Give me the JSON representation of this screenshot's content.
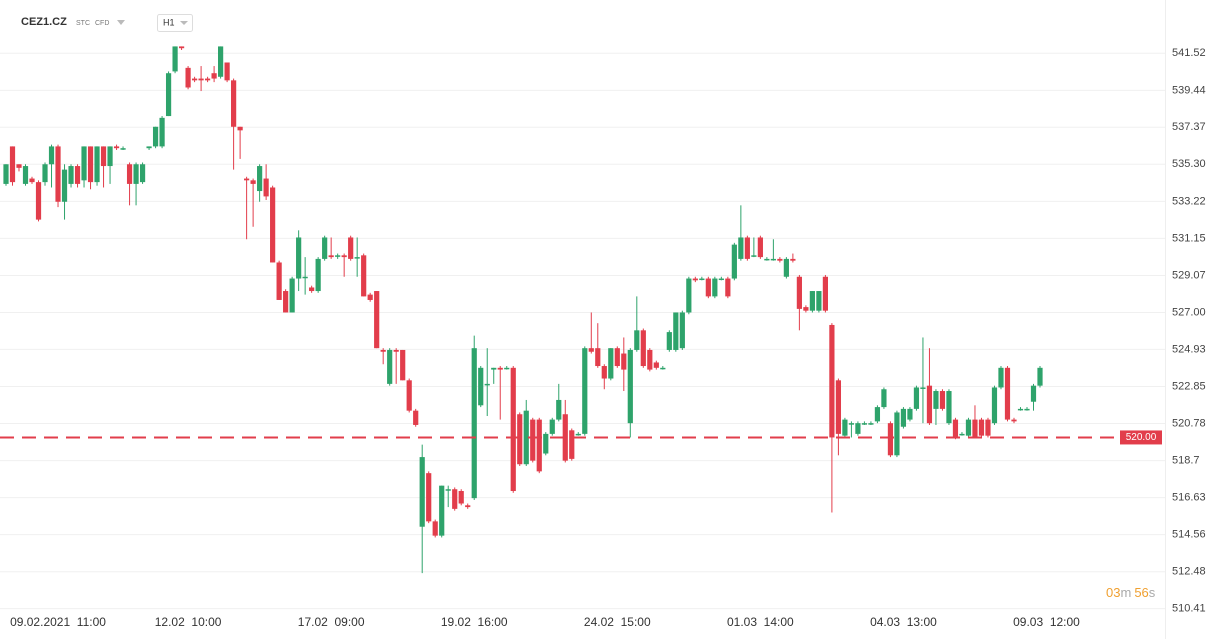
{
  "chart_data": {
    "type": "candlestick",
    "title": "CEZ1.CZ",
    "badges": [
      "STC",
      "CFD"
    ],
    "timeframe": "H1",
    "up_color": "#2ea36b",
    "down_color": "#e23d4b",
    "ylim": [
      510.0,
      544.5
    ],
    "yticks": [
      541.52,
      539.44,
      537.37,
      {
        "value": 535.3,
        "label": "535.30"
      },
      533.22,
      531.15,
      529.07,
      {
        "value": 527.0,
        "label": "527.00"
      },
      524.93,
      522.85,
      520.78,
      518.7,
      516.63,
      514.56,
      512.48,
      510.41
    ],
    "price_line": {
      "value": 520,
      "label": "520.00"
    },
    "countdown": [
      "03",
      "m",
      "56",
      "s"
    ],
    "categories": [
      null,
      null,
      null,
      null,
      null,
      null,
      null,
      null,
      "09.02.2021  11:00",
      null,
      null,
      null,
      null,
      null,
      null,
      null,
      null,
      null,
      null,
      null,
      null,
      null,
      null,
      null,
      null,
      null,
      null,
      null,
      "12.02  10:00",
      null,
      null,
      null,
      null,
      null,
      null,
      null,
      null,
      null,
      null,
      null,
      null,
      null,
      null,
      null,
      null,
      null,
      null,
      null,
      null,
      null,
      "17.02  09:00",
      null,
      null,
      null,
      null,
      null,
      null,
      null,
      null,
      null,
      null,
      null,
      null,
      null,
      null,
      null,
      null,
      null,
      null,
      null,
      null,
      null,
      "19.02  16:00",
      null,
      null,
      null,
      null,
      null,
      null,
      null,
      null,
      null,
      null,
      null,
      null,
      null,
      null,
      null,
      null,
      null,
      null,
      null,
      null,
      null,
      "24.02  15:00",
      null,
      null,
      null,
      null,
      null,
      null,
      null,
      null,
      null,
      null,
      null,
      null,
      null,
      null,
      null,
      null,
      null,
      null,
      null,
      null,
      null,
      "01.03  14:00",
      null,
      null,
      null,
      null,
      null,
      null,
      null,
      null,
      null,
      null,
      null,
      null,
      null,
      null,
      null,
      null,
      null,
      null,
      null,
      null,
      null,
      "04.03  13:00",
      null,
      null,
      null,
      null,
      null,
      null,
      null,
      null,
      null,
      null,
      null,
      null,
      null,
      null,
      null,
      null,
      null,
      null,
      null,
      null,
      null,
      "09.03  12:00"
    ],
    "values": [
      [
        534.2,
        535.3,
        534.1,
        535.3
      ],
      [
        536.3,
        536.3,
        534.1,
        534.3
      ],
      [
        535.3,
        535.3,
        534.9,
        535.1
      ],
      [
        534.2,
        535.3,
        534.1,
        535.2
      ],
      [
        534.5,
        534.6,
        534.2,
        534.3
      ],
      [
        534.3,
        534.4,
        532.1,
        532.2
      ],
      [
        534.3,
        535.4,
        534.1,
        535.3
      ],
      [
        535.3,
        536.4,
        534.0,
        536.3
      ],
      [
        536.3,
        536.4,
        532.9,
        533.2
      ],
      [
        533.2,
        535.3,
        532.2,
        535.0
      ],
      [
        534.2,
        535.3,
        534.0,
        535.2
      ],
      [
        535.2,
        535.3,
        534.0,
        534.2
      ],
      [
        534.4,
        536.3,
        534.0,
        536.3
      ],
      [
        536.3,
        536.3,
        533.9,
        534.3
      ],
      [
        534.3,
        536.3,
        534.1,
        536.3
      ],
      [
        536.3,
        536.3,
        534.0,
        535.2
      ],
      [
        535.2,
        536.3,
        534.2,
        536.3
      ],
      [
        536.3,
        536.4,
        536.1,
        536.2
      ],
      [
        536.2,
        536.3,
        536.1,
        536.2
      ],
      [
        535.3,
        535.4,
        533.0,
        534.2
      ],
      [
        534.2,
        535.4,
        533.0,
        535.3
      ],
      [
        534.3,
        535.4,
        534.2,
        535.3
      ],
      [
        536.2,
        536.3,
        536.1,
        536.3
      ],
      [
        536.3,
        537.4,
        536.2,
        537.4
      ],
      [
        536.3,
        538.0,
        536.2,
        537.9
      ],
      [
        538.0,
        540.5,
        538.0,
        540.4
      ],
      [
        540.5,
        541.9,
        540.4,
        541.9
      ],
      [
        541.9,
        541.9,
        541.7,
        541.8
      ],
      [
        540.7,
        540.8,
        539.5,
        539.6
      ],
      [
        540.1,
        540.2,
        539.9,
        540.0
      ],
      [
        540.1,
        540.8,
        539.4,
        540.0
      ],
      [
        540.1,
        540.2,
        539.9,
        540.0
      ],
      [
        540.4,
        540.8,
        539.9,
        540.1
      ],
      [
        540.2,
        541.9,
        540.1,
        541.9
      ],
      [
        541.0,
        541.0,
        539.9,
        540.0
      ],
      [
        540.0,
        540.1,
        535.0,
        537.4
      ],
      [
        537.4,
        537.4,
        535.6,
        537.2
      ],
      [
        534.5,
        534.6,
        531.1,
        534.4
      ],
      [
        534.4,
        534.5,
        531.8,
        534.2
      ],
      [
        533.8,
        535.3,
        533.2,
        535.2
      ],
      [
        534.5,
        535.3,
        533.3,
        533.5
      ],
      [
        534.0,
        534.1,
        529.8,
        529.8
      ],
      [
        529.8,
        529.9,
        527.7,
        527.7
      ],
      [
        528.2,
        528.3,
        527.0,
        527.0
      ],
      [
        527.0,
        529.0,
        527.0,
        528.9
      ],
      [
        528.9,
        531.6,
        528.2,
        531.2
      ],
      [
        529.0,
        530.1,
        528.0,
        529.0
      ],
      [
        528.4,
        528.5,
        528.1,
        528.2
      ],
      [
        528.2,
        530.1,
        528.1,
        530.0
      ],
      [
        530.0,
        531.3,
        529.9,
        531.2
      ],
      [
        530.2,
        531.2,
        530.0,
        530.1
      ],
      [
        530.2,
        530.3,
        530.0,
        530.2
      ],
      [
        530.2,
        530.3,
        529.0,
        530.1
      ],
      [
        531.2,
        531.3,
        529.9,
        530.0
      ],
      [
        530.1,
        531.2,
        529.0,
        530.1
      ],
      [
        530.2,
        530.3,
        527.9,
        527.9
      ],
      [
        528.0,
        528.1,
        527.6,
        527.7
      ],
      [
        528.2,
        528.2,
        525.0,
        525.0
      ],
      [
        524.9,
        525.0,
        524.1,
        524.8
      ],
      [
        523.0,
        525.0,
        522.9,
        524.9
      ],
      [
        524.9,
        525.0,
        523.0,
        524.8
      ],
      [
        524.9,
        524.9,
        523.2,
        523.2
      ],
      [
        523.2,
        523.3,
        521.4,
        521.5
      ],
      [
        521.5,
        521.6,
        520.6,
        520.7
      ],
      [
        515.0,
        519.6,
        512.4,
        518.9
      ],
      [
        518.0,
        518.1,
        515.2,
        515.3
      ],
      [
        515.3,
        515.4,
        514.4,
        514.5
      ],
      [
        514.5,
        517.3,
        514.4,
        517.3
      ],
      [
        517.1,
        517.3,
        516.1,
        517.1
      ],
      [
        517.1,
        517.2,
        515.9,
        516.0
      ],
      [
        517.0,
        517.1,
        516.2,
        516.3
      ],
      [
        516.2,
        516.3,
        516.0,
        516.1
      ],
      [
        516.6,
        525.7,
        516.5,
        525.0
      ],
      [
        521.8,
        524.0,
        521.7,
        523.9
      ],
      [
        523.0,
        525.0,
        521.2,
        523.0
      ],
      [
        523.8,
        523.9,
        523.0,
        523.9
      ],
      [
        523.9,
        524.0,
        521.0,
        523.8
      ],
      [
        523.9,
        524.0,
        523.8,
        523.9
      ],
      [
        523.9,
        524.0,
        516.9,
        517.0
      ],
      [
        521.3,
        521.4,
        518.4,
        518.5
      ],
      [
        518.5,
        522.1,
        518.4,
        521.5
      ],
      [
        521.0,
        521.1,
        518.6,
        518.7
      ],
      [
        521.0,
        521.1,
        518.0,
        518.1
      ],
      [
        519.1,
        520.3,
        519.0,
        520.2
      ],
      [
        520.2,
        521.1,
        520.1,
        521.0
      ],
      [
        521.0,
        523.0,
        520.9,
        522.1
      ],
      [
        521.3,
        522.1,
        518.6,
        518.7
      ],
      [
        520.4,
        520.5,
        518.7,
        518.8
      ],
      [
        520.2,
        520.3,
        520.1,
        520.2
      ],
      [
        520.2,
        525.1,
        520.1,
        525.0
      ],
      [
        525.0,
        527.0,
        524.7,
        524.8
      ],
      [
        525.0,
        526.4,
        523.9,
        524.0
      ],
      [
        524.0,
        524.1,
        522.7,
        523.3
      ],
      [
        523.3,
        525.0,
        523.2,
        525.0
      ],
      [
        525.0,
        525.1,
        523.9,
        524.0
      ],
      [
        524.7,
        525.6,
        522.6,
        523.8
      ],
      [
        520.8,
        525.0,
        520.0,
        524.9
      ],
      [
        524.9,
        527.9,
        524.8,
        526.0
      ],
      [
        526.0,
        526.1,
        523.9,
        524.0
      ],
      [
        524.9,
        525.0,
        523.7,
        523.8
      ],
      [
        524.2,
        524.3,
        523.8,
        523.9
      ],
      [
        523.9,
        524.0,
        523.8,
        523.9
      ],
      [
        524.9,
        526.0,
        524.8,
        525.9
      ],
      [
        524.9,
        527.0,
        524.8,
        527.0
      ],
      [
        525.0,
        527.1,
        524.9,
        527.0
      ],
      [
        527.0,
        529.0,
        526.9,
        528.9
      ],
      [
        528.9,
        529.0,
        528.7,
        528.8
      ],
      [
        528.9,
        529.0,
        528.8,
        528.9
      ],
      [
        528.9,
        529.0,
        527.8,
        527.9
      ],
      [
        527.9,
        529.0,
        527.8,
        528.9
      ],
      [
        528.9,
        529.0,
        528.8,
        528.9
      ],
      [
        528.9,
        529.0,
        527.8,
        527.9
      ],
      [
        528.9,
        530.9,
        528.8,
        530.8
      ],
      [
        530.0,
        533.0,
        529.9,
        531.2
      ],
      [
        531.2,
        531.3,
        529.9,
        530.0
      ],
      [
        530.2,
        531.2,
        530.1,
        530.2
      ],
      [
        531.2,
        531.3,
        530.0,
        530.1
      ],
      [
        530.0,
        530.1,
        529.9,
        530.0
      ],
      [
        530.0,
        531.1,
        529.9,
        530.0
      ],
      [
        530.0,
        530.1,
        529.8,
        529.9
      ],
      [
        529.0,
        530.1,
        528.9,
        530.0
      ],
      [
        530.0,
        530.3,
        529.8,
        529.9
      ],
      [
        529.0,
        529.1,
        526.0,
        527.2
      ],
      [
        527.3,
        527.4,
        527.0,
        527.1
      ],
      [
        527.1,
        528.2,
        527.0,
        528.2
      ],
      [
        527.1,
        528.2,
        527.0,
        528.2
      ],
      [
        529.0,
        529.1,
        527.0,
        527.1
      ],
      [
        526.3,
        526.4,
        515.8,
        520.0
      ],
      [
        523.2,
        523.3,
        519.0,
        520.2
      ],
      [
        520.1,
        521.1,
        520.0,
        521.0
      ],
      [
        520.8,
        520.9,
        520.0,
        520.8
      ],
      [
        520.2,
        520.9,
        520.1,
        520.8
      ],
      [
        520.8,
        520.9,
        520.7,
        520.8
      ],
      [
        520.8,
        520.9,
        520.7,
        520.8
      ],
      [
        520.9,
        521.8,
        520.8,
        521.7
      ],
      [
        521.7,
        522.8,
        521.6,
        522.7
      ],
      [
        520.8,
        520.9,
        518.9,
        519.0
      ],
      [
        519.0,
        521.5,
        518.9,
        521.4
      ],
      [
        520.6,
        521.7,
        520.5,
        521.6
      ],
      [
        521.0,
        521.7,
        520.9,
        521.6
      ],
      [
        521.6,
        522.9,
        521.5,
        522.8
      ],
      [
        522.8,
        525.6,
        520.8,
        522.8
      ],
      [
        522.9,
        525.0,
        520.7,
        520.8
      ],
      [
        521.6,
        522.7,
        520.7,
        522.6
      ],
      [
        522.6,
        522.7,
        521.5,
        521.6
      ],
      [
        520.8,
        522.7,
        520.7,
        522.6
      ],
      [
        521.0,
        521.1,
        519.9,
        520.0
      ],
      [
        520.2,
        520.3,
        520.1,
        520.2
      ],
      [
        520.1,
        521.1,
        520.0,
        521.0
      ],
      [
        521.0,
        521.8,
        520.0,
        520.0
      ],
      [
        521.0,
        521.1,
        520.0,
        520.1
      ],
      [
        521.0,
        521.1,
        520.0,
        520.1
      ],
      [
        520.8,
        522.9,
        520.7,
        522.8
      ],
      [
        522.8,
        524.0,
        522.7,
        523.9
      ],
      [
        523.9,
        524.0,
        520.9,
        521.0
      ],
      [
        521.0,
        521.1,
        520.8,
        520.9
      ],
      [
        521.6,
        521.7,
        521.5,
        521.6
      ],
      [
        521.6,
        521.7,
        521.5,
        521.6
      ],
      [
        522.0,
        523.0,
        521.5,
        522.9
      ],
      [
        522.9,
        524.0,
        522.8,
        523.9
      ],
      null
    ]
  }
}
